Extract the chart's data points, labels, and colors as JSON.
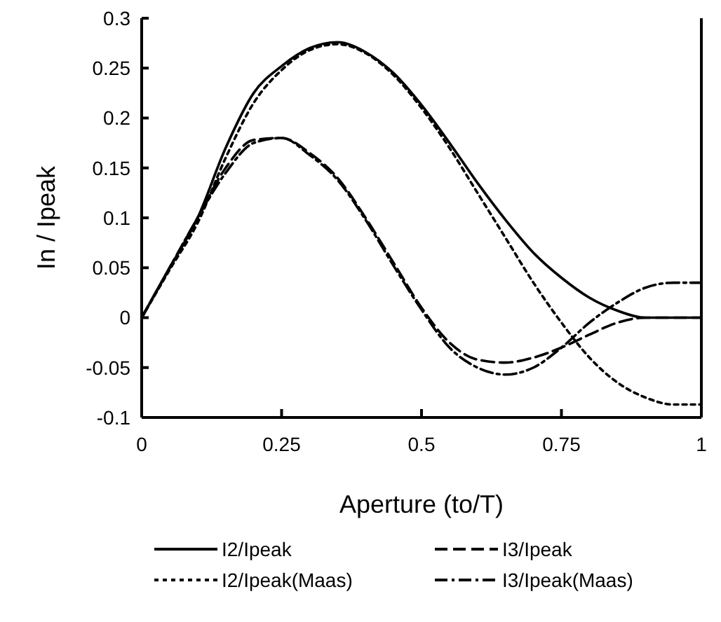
{
  "chart_data": {
    "type": "line",
    "xlabel": "Aperture (to/T)",
    "ylabel": "In / Ipeak",
    "x": [
      0,
      0.05,
      0.1,
      0.15,
      0.2,
      0.25,
      0.3,
      0.35,
      0.4,
      0.45,
      0.5,
      0.55,
      0.6,
      0.65,
      0.7,
      0.75,
      0.8,
      0.85,
      0.9,
      0.95,
      1
    ],
    "series": [
      {
        "name": "I2/Ipeak",
        "color": "#000000",
        "line_style": "solid",
        "values": [
          0,
          0.05,
          0.1,
          0.17,
          0.225,
          0.252,
          0.27,
          0.276,
          0.266,
          0.245,
          0.213,
          0.175,
          0.135,
          0.098,
          0.065,
          0.04,
          0.02,
          0.007,
          0,
          0,
          0
        ]
      },
      {
        "name": "I3/Ipeak",
        "color": "#000000",
        "line_style": "dashed",
        "values": [
          0,
          0.05,
          0.1,
          0.15,
          0.178,
          0.18,
          0.165,
          0.14,
          0.1,
          0.055,
          0.01,
          -0.025,
          -0.042,
          -0.045,
          -0.04,
          -0.03,
          -0.017,
          -0.005,
          0,
          0,
          0
        ]
      },
      {
        "name": "I2/Ipeak(Maas)",
        "color": "#000000",
        "line_style": "dotted",
        "values": [
          0,
          0.048,
          0.095,
          0.16,
          0.215,
          0.248,
          0.268,
          0.274,
          0.265,
          0.243,
          0.21,
          0.17,
          0.125,
          0.08,
          0.035,
          -0.005,
          -0.04,
          -0.065,
          -0.08,
          -0.087,
          -0.087
        ]
      },
      {
        "name": "I3/Ipeak(Maas)",
        "color": "#000000",
        "line_style": "dashdot",
        "values": [
          0,
          0.05,
          0.1,
          0.145,
          0.175,
          0.18,
          0.163,
          0.138,
          0.098,
          0.052,
          0.008,
          -0.03,
          -0.05,
          -0.057,
          -0.05,
          -0.03,
          -0.005,
          0.015,
          0.03,
          0.035,
          0.035
        ]
      }
    ],
    "xlim": [
      0,
      1
    ],
    "xticks": [
      0,
      0.25,
      0.5,
      0.75,
      1
    ],
    "ylim": [
      -0.1,
      0.3
    ],
    "yticks": [
      -0.1,
      -0.05,
      0,
      0.05,
      0.1,
      0.15,
      0.2,
      0.25,
      0.3
    ],
    "grid": false,
    "legend": "bottom",
    "marker": "none"
  }
}
